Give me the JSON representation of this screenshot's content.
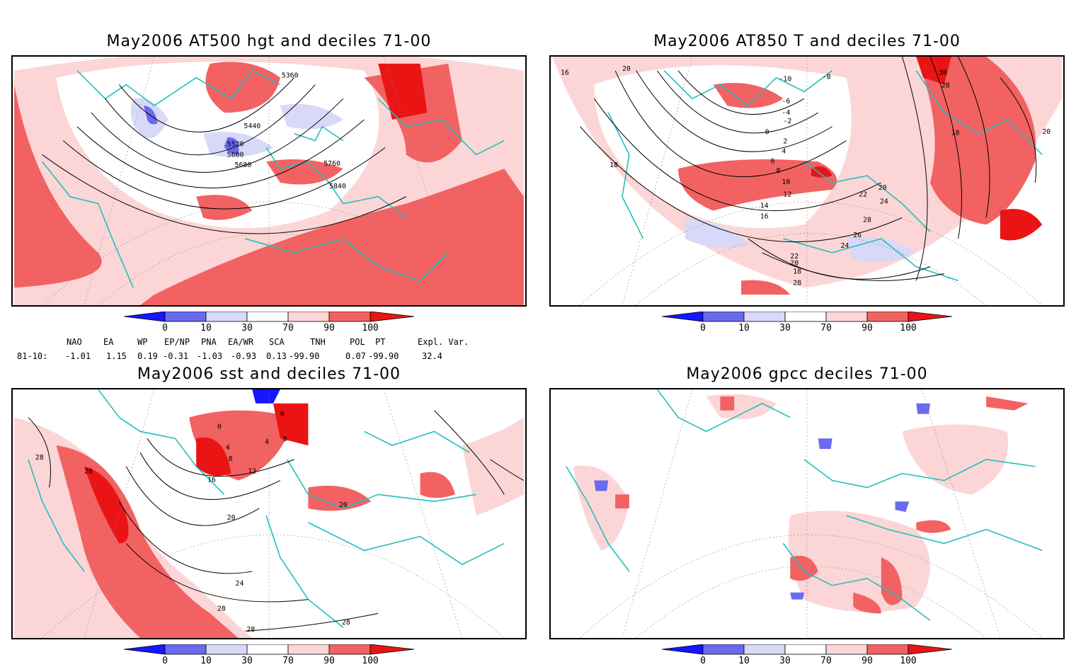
{
  "panels": [
    {
      "title": "May2006 AT500 hgt and deciles 71-00",
      "contour_labels": [
        "5360",
        "5440",
        "5520",
        "5600",
        "5680",
        "5760",
        "5840"
      ]
    },
    {
      "title": "May2006 AT850 T and deciles 71-00",
      "contour_labels": [
        "16",
        "20",
        "-10",
        "-8",
        "-6",
        "-4",
        "-2",
        "0",
        "2",
        "4",
        "6",
        "8",
        "10",
        "12",
        "14",
        "16",
        "18",
        "20",
        "22",
        "24",
        "28",
        "26",
        "24",
        "22",
        "20",
        "18",
        "28",
        "30",
        "28",
        "18",
        "20"
      ]
    },
    {
      "title": "May2006 sst and deciles 71-00",
      "contour_labels": [
        "28",
        "28",
        "0",
        "0",
        "4",
        "4",
        "8",
        "8",
        "12",
        "16",
        "20",
        "24",
        "28",
        "20",
        "28",
        "28"
      ]
    },
    {
      "title": "May2006 gpcc deciles 71-00",
      "contour_labels": []
    }
  ],
  "colorbar": {
    "ticks": [
      "0",
      "10",
      "30",
      "70",
      "90",
      "100"
    ],
    "colors": {
      "deep_blue": "#1515ff",
      "blue": "#6a6aef",
      "light_blue": "#d8d8f8",
      "white": "#ffffff",
      "light_red": "#fcd6d6",
      "red": "#f26262",
      "deep_red": "#ea1414"
    }
  },
  "indices": {
    "headers": [
      "NAO",
      "EA",
      "WP",
      "EP/NP",
      "PNA",
      "EA/WR",
      "SCA",
      "TNH",
      "POL",
      "PT",
      "Expl. Var."
    ],
    "row_label": "81-10:",
    "values": [
      "-1.01",
      "1.15",
      "0.19",
      "-0.31",
      "-1.03",
      "-0.93",
      "0.13",
      "-99.90",
      "0.07",
      "-99.90",
      "32.4"
    ]
  },
  "colors": {
    "coast": "#1fbfbf",
    "contour": "#000000",
    "frame": "#000000"
  }
}
